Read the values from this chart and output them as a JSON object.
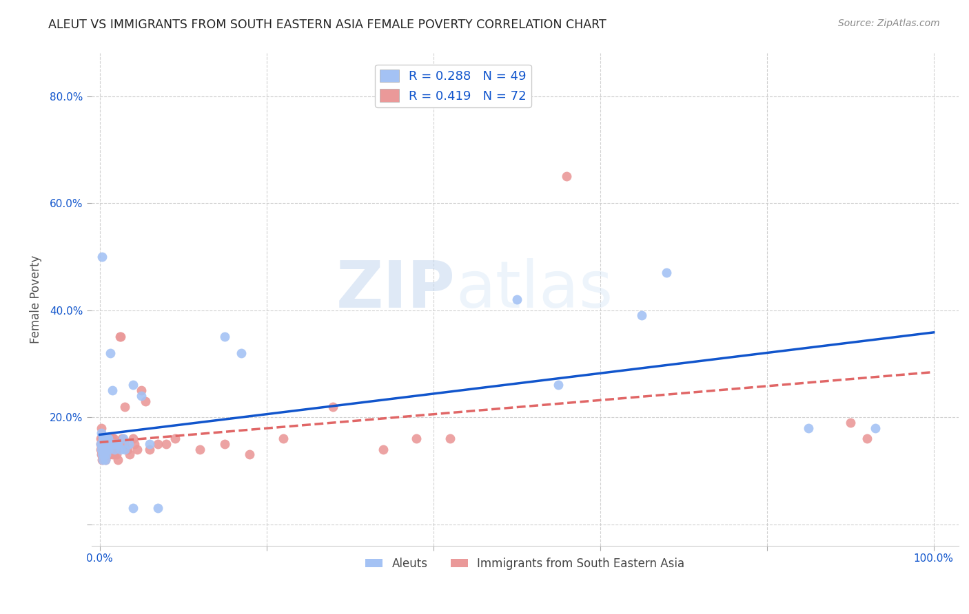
{
  "title": "ALEUT VS IMMIGRANTS FROM SOUTH EASTERN ASIA FEMALE POVERTY CORRELATION CHART",
  "source": "Source: ZipAtlas.com",
  "ylabel": "Female Poverty",
  "xticks": [
    0.0,
    0.2,
    0.4,
    0.6,
    0.8,
    1.0
  ],
  "xticklabels": [
    "0.0%",
    "",
    "",
    "",
    "",
    "100.0%"
  ],
  "yticks": [
    0.0,
    0.2,
    0.4,
    0.6,
    0.8
  ],
  "yticklabels": [
    "",
    "20.0%",
    "40.0%",
    "60.0%",
    "80.0%"
  ],
  "color_blue": "#a4c2f4",
  "color_pink": "#ea9999",
  "color_line_blue": "#1155cc",
  "color_line_pink": "#e06666",
  "watermark": "ZIPatlas",
  "aleuts_x": [
    0.001,
    0.002,
    0.002,
    0.003,
    0.003,
    0.003,
    0.004,
    0.004,
    0.004,
    0.005,
    0.005,
    0.005,
    0.005,
    0.006,
    0.006,
    0.006,
    0.007,
    0.007,
    0.008,
    0.008,
    0.009,
    0.009,
    0.01,
    0.01,
    0.011,
    0.012,
    0.013,
    0.015,
    0.016,
    0.018,
    0.02,
    0.022,
    0.025,
    0.028,
    0.03,
    0.035,
    0.04,
    0.04,
    0.05,
    0.06,
    0.07,
    0.15,
    0.17,
    0.5,
    0.55,
    0.65,
    0.68,
    0.85,
    0.93
  ],
  "aleuts_y": [
    0.15,
    0.14,
    0.17,
    0.13,
    0.15,
    0.5,
    0.15,
    0.16,
    0.12,
    0.14,
    0.15,
    0.16,
    0.13,
    0.15,
    0.14,
    0.16,
    0.12,
    0.15,
    0.14,
    0.13,
    0.15,
    0.16,
    0.16,
    0.14,
    0.15,
    0.15,
    0.32,
    0.25,
    0.15,
    0.14,
    0.15,
    0.15,
    0.14,
    0.16,
    0.14,
    0.15,
    0.26,
    0.03,
    0.24,
    0.15,
    0.03,
    0.35,
    0.32,
    0.42,
    0.26,
    0.39,
    0.47,
    0.18,
    0.18
  ],
  "sea_x": [
    0.001,
    0.001,
    0.001,
    0.002,
    0.002,
    0.002,
    0.003,
    0.003,
    0.003,
    0.003,
    0.004,
    0.004,
    0.004,
    0.004,
    0.005,
    0.005,
    0.005,
    0.005,
    0.005,
    0.006,
    0.006,
    0.006,
    0.007,
    0.007,
    0.007,
    0.008,
    0.008,
    0.009,
    0.009,
    0.01,
    0.01,
    0.011,
    0.012,
    0.012,
    0.013,
    0.014,
    0.015,
    0.015,
    0.016,
    0.017,
    0.018,
    0.019,
    0.02,
    0.02,
    0.022,
    0.024,
    0.025,
    0.027,
    0.03,
    0.03,
    0.033,
    0.036,
    0.04,
    0.042,
    0.045,
    0.05,
    0.055,
    0.06,
    0.07,
    0.08,
    0.09,
    0.12,
    0.15,
    0.18,
    0.22,
    0.28,
    0.34,
    0.38,
    0.42,
    0.56,
    0.9,
    0.92
  ],
  "sea_y": [
    0.15,
    0.14,
    0.16,
    0.13,
    0.15,
    0.18,
    0.14,
    0.16,
    0.13,
    0.12,
    0.14,
    0.16,
    0.13,
    0.15,
    0.14,
    0.16,
    0.13,
    0.15,
    0.14,
    0.13,
    0.15,
    0.16,
    0.12,
    0.15,
    0.14,
    0.13,
    0.16,
    0.14,
    0.15,
    0.13,
    0.16,
    0.14,
    0.15,
    0.13,
    0.16,
    0.14,
    0.16,
    0.13,
    0.14,
    0.16,
    0.13,
    0.15,
    0.14,
    0.13,
    0.12,
    0.35,
    0.35,
    0.16,
    0.22,
    0.15,
    0.14,
    0.13,
    0.16,
    0.15,
    0.14,
    0.25,
    0.23,
    0.14,
    0.15,
    0.15,
    0.16,
    0.14,
    0.15,
    0.13,
    0.16,
    0.22,
    0.14,
    0.16,
    0.16,
    0.65,
    0.19,
    0.16
  ]
}
